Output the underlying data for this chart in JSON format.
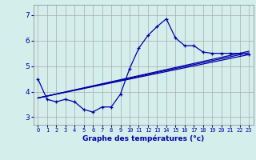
{
  "xlabel": "Graphe des températures (°c)",
  "background_color": "#d4eeeb",
  "line_color": "#0000aa",
  "grid_color": "#aaaaaa",
  "yticks": [
    3,
    4,
    5,
    6,
    7
  ],
  "ylim": [
    2.7,
    7.4
  ],
  "xlim": [
    -0.5,
    23.5
  ],
  "xticks": [
    0,
    1,
    2,
    3,
    4,
    5,
    6,
    7,
    8,
    9,
    10,
    11,
    12,
    13,
    14,
    15,
    16,
    17,
    18,
    19,
    20,
    21,
    22,
    23
  ],
  "series1_x": [
    0,
    1,
    2,
    3,
    4,
    5,
    6,
    7,
    8,
    9,
    10,
    11,
    12,
    13,
    14,
    15,
    16,
    17,
    18,
    19,
    20,
    21,
    22,
    23
  ],
  "series1_y": [
    4.5,
    3.7,
    3.6,
    3.7,
    3.6,
    3.3,
    3.2,
    3.4,
    3.4,
    3.9,
    4.9,
    5.7,
    6.2,
    6.55,
    6.85,
    6.1,
    5.8,
    5.8,
    5.55,
    5.5,
    5.5,
    5.5,
    5.5,
    5.45
  ],
  "trend_lines": [
    {
      "x": [
        0,
        23
      ],
      "y": [
        3.75,
        5.45
      ]
    },
    {
      "x": [
        0,
        23
      ],
      "y": [
        3.75,
        5.52
      ]
    },
    {
      "x": [
        0,
        23
      ],
      "y": [
        3.75,
        5.58
      ]
    }
  ]
}
